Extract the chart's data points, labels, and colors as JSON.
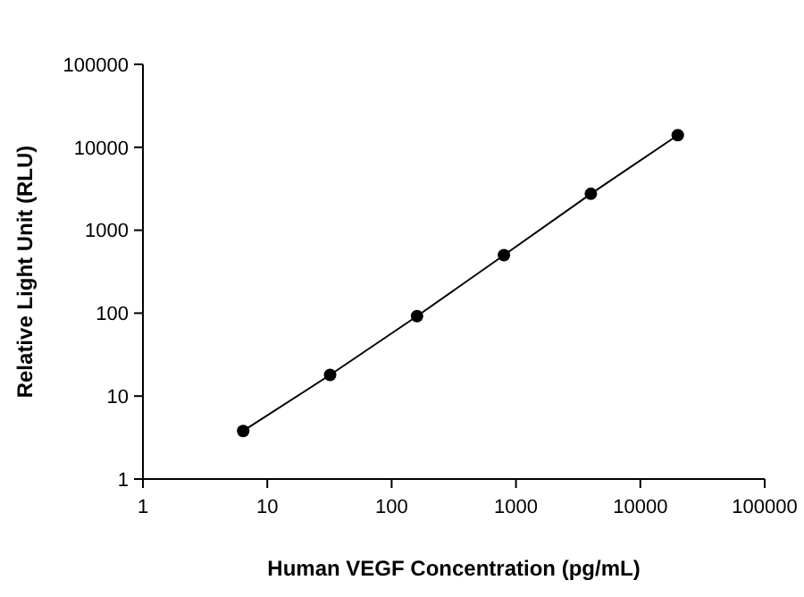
{
  "chart_data": {
    "type": "line",
    "xlabel": "Human VEGF Concentration (pg/mL)",
    "ylabel": "Relative Light Unit (RLU)",
    "log": "xy",
    "marker": "circle",
    "line_style": "solid",
    "grid": false,
    "x": [
      6.4,
      32,
      160,
      800,
      4000,
      20000
    ],
    "series": [
      {
        "color": "#000000",
        "values": [
          3.8,
          18,
          92,
          500,
          2750,
          14000
        ]
      }
    ],
    "xlim": [
      1,
      100000
    ],
    "xticks": [
      1,
      10,
      100,
      1000,
      10000,
      100000
    ],
    "ylim": [
      1,
      100000
    ],
    "yticks": [
      1,
      10,
      100,
      1000,
      10000,
      100000
    ]
  }
}
